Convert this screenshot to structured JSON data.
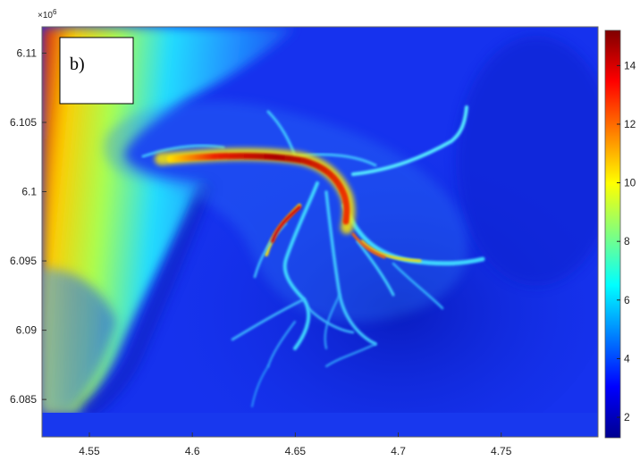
{
  "chart_data": {
    "type": "heatmap",
    "panel_label": "b)",
    "x_ticks": [
      "4.55",
      "4.6",
      "4.65",
      "4.7",
      "4.75"
    ],
    "x_tick_values": [
      4.55,
      4.6,
      4.65,
      4.7,
      4.75
    ],
    "xlim": [
      4.527,
      4.797
    ],
    "y_multiplier": "×10^6",
    "y_ticks": [
      "6.11",
      "6.105",
      "6.1",
      "6.095",
      "6.09",
      "6.085"
    ],
    "y_tick_values": [
      6.11,
      6.105,
      6.1,
      6.095,
      6.09,
      6.085
    ],
    "ylim": [
      6.0823,
      6.1119
    ],
    "colorbar": {
      "ticks": [
        "14",
        "12",
        "10",
        "8",
        "6",
        "4",
        "2"
      ],
      "tick_values": [
        14,
        12,
        10,
        8,
        6,
        4,
        2
      ],
      "range": [
        1.3,
        15.2
      ],
      "colormap": "jet"
    },
    "colors": {
      "background": "#1530ee",
      "deep": "#0a1ec8",
      "cyan": "#33ccff",
      "yellow": "#ffee00",
      "red": "#d01010"
    }
  }
}
